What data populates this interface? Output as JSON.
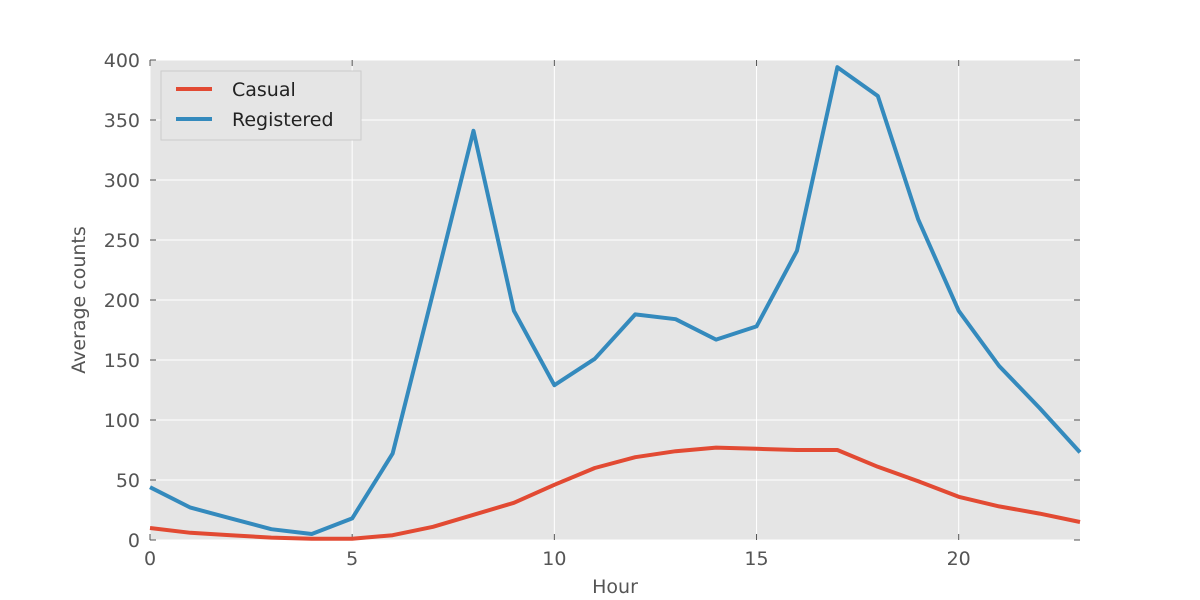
{
  "chart_data": {
    "type": "line",
    "title": "",
    "xlabel": "Hour",
    "ylabel": "Average counts",
    "xlim": [
      0,
      23
    ],
    "ylim": [
      0,
      400
    ],
    "xticks": [
      0,
      5,
      10,
      15,
      20
    ],
    "yticks": [
      0,
      50,
      100,
      150,
      200,
      250,
      300,
      350,
      400
    ],
    "grid": true,
    "legend_position": "top-left",
    "x": [
      0,
      1,
      2,
      3,
      4,
      5,
      6,
      7,
      8,
      9,
      10,
      11,
      12,
      13,
      14,
      15,
      16,
      17,
      18,
      19,
      20,
      21,
      22,
      23
    ],
    "series": [
      {
        "name": "Casual",
        "color": "#e24a33",
        "values": [
          10,
          6,
          4,
          2,
          1,
          1,
          4,
          11,
          21,
          31,
          46,
          60,
          69,
          74,
          77,
          76,
          75,
          75,
          61,
          49,
          36,
          28,
          22,
          15
        ]
      },
      {
        "name": "Registered",
        "color": "#348abd",
        "values": [
          44,
          27,
          18,
          9,
          5,
          18,
          72,
          206,
          341,
          191,
          129,
          151,
          188,
          184,
          167,
          178,
          241,
          394,
          370,
          267,
          191,
          145,
          110,
          73
        ]
      }
    ],
    "colors": {
      "plot_background": "#e5e5e5",
      "grid": "#ffffff",
      "axis_text": "#555555"
    }
  }
}
